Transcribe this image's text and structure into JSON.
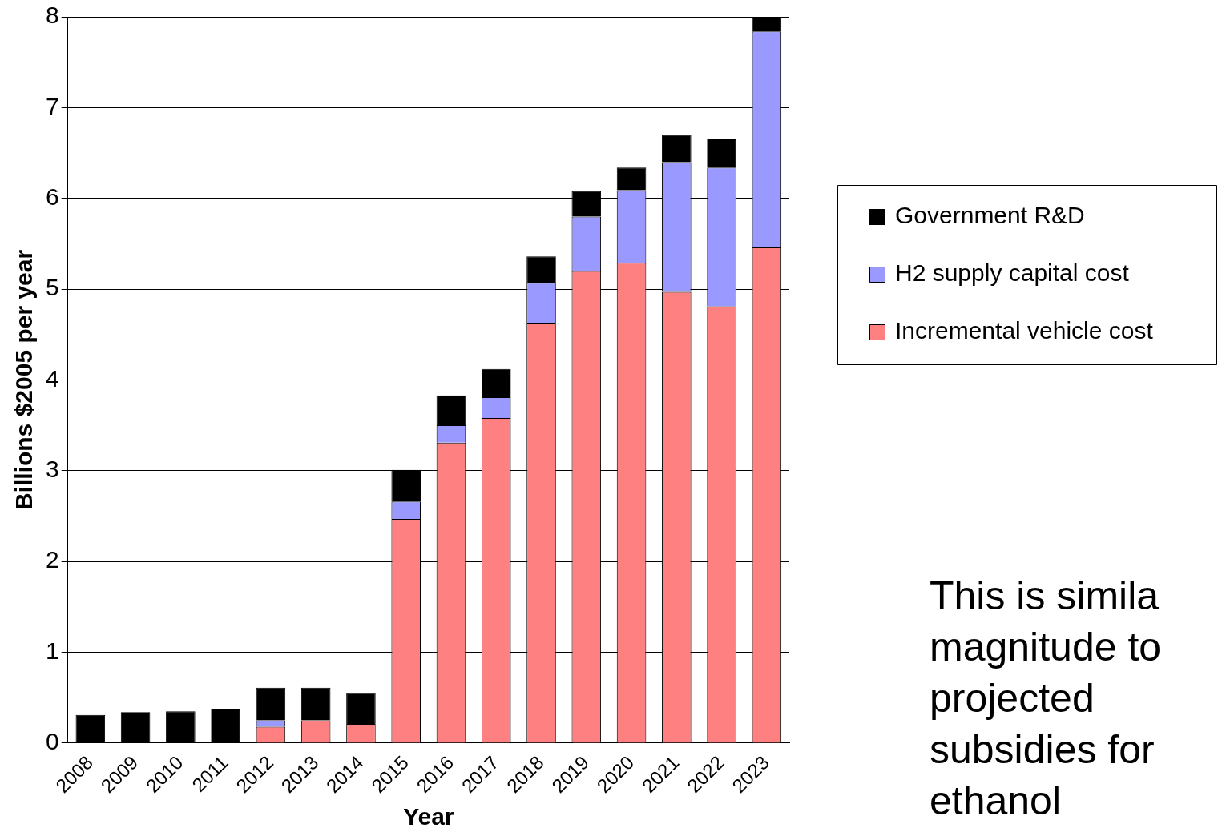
{
  "chart_data": {
    "type": "bar",
    "stacked": true,
    "xlabel": "Year",
    "ylabel": "Billions $2005 per year",
    "categories": [
      "2008",
      "2009",
      "2010",
      "2011",
      "2012",
      "2013",
      "2014",
      "2015",
      "2016",
      "2017",
      "2018",
      "2019",
      "2020",
      "2021",
      "2022",
      "2023"
    ],
    "series": [
      {
        "name": "Incremental vehicle cost",
        "color": "#ff8080",
        "values": [
          0,
          0,
          0,
          0,
          0.18,
          0.25,
          0.21,
          2.47,
          3.31,
          3.58,
          4.63,
          5.2,
          5.29,
          4.97,
          4.81,
          5.46
        ]
      },
      {
        "name": "H2 supply capital cost",
        "color": "#9999ff",
        "values": [
          0,
          0,
          0,
          0,
          0.07,
          0,
          0,
          0.19,
          0.19,
          0.23,
          0.44,
          0.6,
          0.8,
          1.43,
          1.53,
          2.38
        ]
      },
      {
        "name": "Government R&D",
        "color": "#000000",
        "values": [
          0.31,
          0.34,
          0.35,
          0.37,
          0.36,
          0.36,
          0.34,
          0.35,
          0.33,
          0.31,
          0.29,
          0.28,
          0.25,
          0.3,
          0.31,
          0.16
        ]
      }
    ],
    "ylim": [
      0,
      8
    ],
    "yticks": [
      0,
      1,
      2,
      3,
      4,
      5,
      6,
      7,
      8
    ],
    "grid": "y",
    "legend": "right",
    "annotations": [
      "This is simila magnitude to projected subsidies for ethanol"
    ]
  }
}
